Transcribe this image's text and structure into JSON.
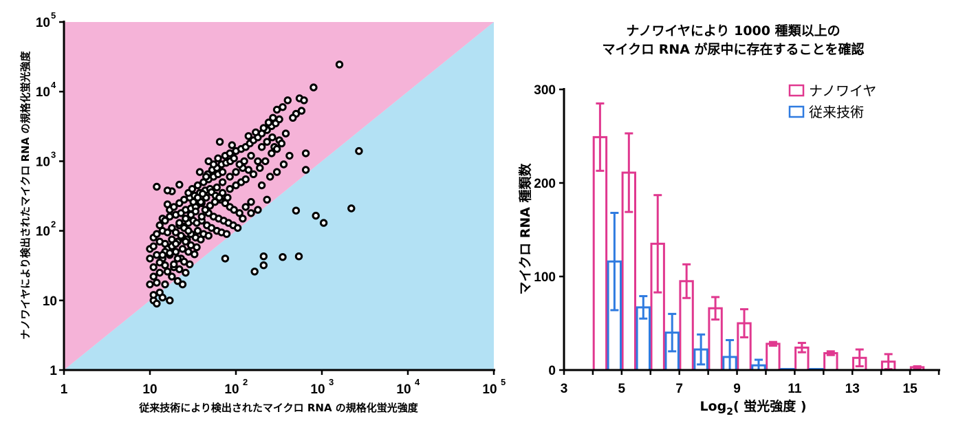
{
  "colors": {
    "pink_region": "#f5b3d8",
    "blue_region": "#b3e1f4",
    "nanowire": "#e0388f",
    "conventional": "#2f7be0",
    "axis": "#000000"
  },
  "chart_data": [
    {
      "type": "scatter",
      "title": "",
      "xlabel": "従来技術により検出されたマイクロ RNA の規格化蛍光強度",
      "ylabel": "ナノワイヤにより検出されたマイクロ RNA の規格化蛍光強度",
      "xscale": "log",
      "yscale": "log",
      "xlim": [
        1,
        100000
      ],
      "ylim": [
        1,
        100000
      ],
      "x_ticks": [
        {
          "v": 1,
          "base": "1",
          "exp": ""
        },
        {
          "v": 10,
          "base": "10",
          "exp": ""
        },
        {
          "v": 100,
          "base": "10",
          "exp": "2"
        },
        {
          "v": 1000,
          "base": "10",
          "exp": "3"
        },
        {
          "v": 10000,
          "base": "10",
          "exp": "4"
        },
        {
          "v": 100000,
          "base": "10",
          "exp": "5"
        }
      ],
      "y_ticks": [
        {
          "v": 1,
          "base": "1",
          "exp": ""
        },
        {
          "v": 10,
          "base": "10",
          "exp": ""
        },
        {
          "v": 100,
          "base": "10",
          "exp": "2"
        },
        {
          "v": 1000,
          "base": "10",
          "exp": "3"
        },
        {
          "v": 10000,
          "base": "10",
          "exp": "4"
        },
        {
          "v": 100000,
          "base": "10",
          "exp": "5"
        }
      ],
      "regions": [
        {
          "name": "nanowire-higher",
          "color": "#f5b3d8"
        },
        {
          "name": "conventional-higher",
          "color": "#b3e1f4"
        }
      ],
      "points": [
        [
          1600,
          24500
        ],
        [
          800,
          11500
        ],
        [
          2700,
          1400
        ],
        [
          2200,
          210
        ],
        [
          500,
          195
        ],
        [
          850,
          165
        ],
        [
          1050,
          130
        ],
        [
          650,
          750
        ],
        [
          650,
          1300
        ],
        [
          580,
          5300
        ],
        [
          500,
          4800
        ],
        [
          550,
          8000
        ],
        [
          620,
          7500
        ],
        [
          400,
          7500
        ],
        [
          350,
          6000
        ],
        [
          300,
          5500
        ],
        [
          460,
          4200
        ],
        [
          380,
          2500
        ],
        [
          320,
          2000
        ],
        [
          280,
          1600
        ],
        [
          420,
          1200
        ],
        [
          360,
          900
        ],
        [
          300,
          700
        ],
        [
          250,
          600
        ],
        [
          200,
          450
        ],
        [
          230,
          280
        ],
        [
          180,
          200
        ],
        [
          150,
          180
        ],
        [
          120,
          150
        ],
        [
          75,
          40
        ],
        [
          165,
          26
        ],
        [
          210,
          43
        ],
        [
          210,
          32
        ],
        [
          350,
          42
        ],
        [
          540,
          43
        ],
        [
          12,
          430
        ],
        [
          18,
          370
        ],
        [
          16,
          380
        ],
        [
          22,
          460
        ],
        [
          16,
          240
        ],
        [
          17,
          200
        ],
        [
          14,
          150
        ],
        [
          11,
          10
        ],
        [
          12,
          9
        ],
        [
          14,
          11
        ],
        [
          17,
          10
        ],
        [
          13,
          13
        ],
        [
          11,
          12
        ],
        [
          15,
          17
        ],
        [
          12,
          18
        ],
        [
          10,
          17
        ],
        [
          11,
          22
        ],
        [
          13,
          25
        ],
        [
          16,
          26
        ],
        [
          19,
          30
        ],
        [
          11,
          30
        ],
        [
          10,
          40
        ],
        [
          12,
          45
        ],
        [
          14,
          40
        ],
        [
          17,
          45
        ],
        [
          20,
          50
        ],
        [
          23,
          40
        ],
        [
          10,
          55
        ],
        [
          11,
          60
        ],
        [
          13,
          70
        ],
        [
          15,
          65
        ],
        [
          18,
          75
        ],
        [
          21,
          70
        ],
        [
          24,
          80
        ],
        [
          27,
          75
        ],
        [
          11,
          80
        ],
        [
          12,
          90
        ],
        [
          14,
          100
        ],
        [
          16,
          95
        ],
        [
          18,
          110
        ],
        [
          22,
          120
        ],
        [
          25,
          115
        ],
        [
          28,
          130
        ],
        [
          32,
          140
        ],
        [
          13,
          120
        ],
        [
          15,
          140
        ],
        [
          17,
          160
        ],
        [
          20,
          170
        ],
        [
          23,
          180
        ],
        [
          26,
          200
        ],
        [
          30,
          210
        ],
        [
          35,
          230
        ],
        [
          40,
          250
        ],
        [
          19,
          220
        ],
        [
          22,
          250
        ],
        [
          25,
          280
        ],
        [
          29,
          300
        ],
        [
          33,
          320
        ],
        [
          38,
          350
        ],
        [
          44,
          380
        ],
        [
          50,
          400
        ],
        [
          28,
          350
        ],
        [
          31,
          400
        ],
        [
          36,
          450
        ],
        [
          42,
          500
        ],
        [
          48,
          550
        ],
        [
          55,
          600
        ],
        [
          62,
          650
        ],
        [
          70,
          700
        ],
        [
          47,
          650
        ],
        [
          53,
          750
        ],
        [
          60,
          800
        ],
        [
          68,
          900
        ],
        [
          77,
          950
        ],
        [
          86,
          1000
        ],
        [
          95,
          1100
        ],
        [
          75,
          1200
        ],
        [
          85,
          1300
        ],
        [
          100,
          1400
        ],
        [
          115,
          1500
        ],
        [
          130,
          1600
        ],
        [
          145,
          1800
        ],
        [
          160,
          2000
        ],
        [
          180,
          2200
        ],
        [
          200,
          2500
        ],
        [
          230,
          2800
        ],
        [
          260,
          3200
        ],
        [
          290,
          3500
        ],
        [
          320,
          4000
        ],
        [
          65,
          1900
        ],
        [
          90,
          1700
        ],
        [
          140,
          2300
        ],
        [
          170,
          2600
        ],
        [
          210,
          3000
        ],
        [
          240,
          3600
        ],
        [
          270,
          4200
        ],
        [
          150,
          1200
        ],
        [
          180,
          1000
        ],
        [
          120,
          800
        ],
        [
          100,
          700
        ],
        [
          85,
          600
        ],
        [
          70,
          500
        ],
        [
          60,
          420
        ],
        [
          52,
          360
        ],
        [
          45,
          300
        ],
        [
          39,
          260
        ],
        [
          34,
          220
        ],
        [
          58,
          320
        ],
        [
          66,
          280
        ],
        [
          75,
          250
        ],
        [
          85,
          220
        ],
        [
          95,
          200
        ],
        [
          110,
          180
        ],
        [
          130,
          220
        ],
        [
          150,
          260
        ],
        [
          48,
          180
        ],
        [
          55,
          160
        ],
        [
          63,
          150
        ],
        [
          72,
          140
        ],
        [
          82,
          130
        ],
        [
          93,
          120
        ],
        [
          105,
          110
        ],
        [
          40,
          140
        ],
        [
          46,
          120
        ],
        [
          52,
          110
        ],
        [
          60,
          100
        ],
        [
          68,
          95
        ],
        [
          78,
          90
        ],
        [
          36,
          100
        ],
        [
          42,
          90
        ],
        [
          48,
          85
        ],
        [
          30,
          90
        ],
        [
          34,
          80
        ],
        [
          39,
          75
        ],
        [
          26,
          70
        ],
        [
          30,
          62
        ],
        [
          35,
          58
        ],
        [
          24,
          55
        ],
        [
          28,
          50
        ],
        [
          33,
          46
        ],
        [
          21,
          40
        ],
        [
          25,
          36
        ],
        [
          29,
          33
        ],
        [
          19,
          33
        ],
        [
          22,
          28
        ],
        [
          26,
          25
        ],
        [
          18,
          22
        ],
        [
          21,
          19
        ],
        [
          24,
          17
        ],
        [
          45,
          600
        ],
        [
          38,
          700
        ],
        [
          55,
          900
        ],
        [
          48,
          1000
        ],
        [
          62,
          1100
        ],
        [
          110,
          900
        ],
        [
          125,
          1000
        ],
        [
          140,
          750
        ],
        [
          160,
          650
        ],
        [
          190,
          800
        ],
        [
          220,
          1000
        ],
        [
          260,
          1300
        ],
        [
          300,
          1500
        ],
        [
          340,
          1800
        ],
        [
          200,
          1600
        ],
        [
          230,
          1900
        ],
        [
          265,
          2200
        ],
        [
          85,
          400
        ],
        [
          100,
          450
        ],
        [
          115,
          500
        ],
        [
          130,
          550
        ],
        [
          70,
          350
        ],
        [
          80,
          300
        ],
        [
          26,
          150
        ],
        [
          30,
          170
        ],
        [
          34,
          190
        ],
        [
          22,
          130
        ],
        [
          25,
          110
        ],
        [
          28,
          100
        ],
        [
          20,
          95
        ],
        [
          23,
          85
        ],
        [
          35,
          130
        ],
        [
          40,
          160
        ],
        [
          44,
          200
        ],
        [
          50,
          230
        ],
        [
          57,
          260
        ],
        [
          64,
          300
        ],
        [
          32,
          260
        ],
        [
          36,
          300
        ],
        [
          41,
          340
        ],
        [
          16,
          55
        ],
        [
          18,
          60
        ],
        [
          20,
          65
        ],
        [
          15,
          50
        ],
        [
          17,
          48
        ],
        [
          14,
          45
        ],
        [
          13,
          35
        ],
        [
          15,
          32
        ]
      ]
    },
    {
      "type": "bar",
      "title_lines": [
        "ナノワイヤにより 1000 種類以上の",
        "マイクロ RNA が尿中に存在することを確認"
      ],
      "xlabel_base": "Log",
      "xlabel_sub": "2",
      "xlabel_rest": "( 蛍光強度 )",
      "ylabel": "マイクロ RNA 種類数",
      "xlim": [
        3,
        16
      ],
      "ylim": [
        0,
        300
      ],
      "x_ticks": [
        "3",
        "5",
        "7",
        "9",
        "11",
        "13",
        "15"
      ],
      "y_ticks": [
        "0",
        "100",
        "200",
        "300"
      ],
      "legend": [
        "ナノワイヤ",
        "従来技術"
      ],
      "legend_position": "top-right",
      "series": [
        {
          "name": "ナノワイヤ",
          "color": "#e0388f",
          "x": [
            4.25,
            5.25,
            6.25,
            7.25,
            8.25,
            9.25,
            10.25,
            11.25,
            12.25,
            13.25,
            14.25,
            15.25
          ],
          "values": [
            249,
            211,
            135,
            95,
            66,
            50,
            28,
            24,
            18,
            13,
            9,
            3
          ],
          "errors": [
            36,
            42,
            52,
            18,
            12,
            15,
            2,
            5,
            2,
            9,
            8,
            1
          ]
        },
        {
          "name": "従来技術",
          "color": "#2f7be0",
          "x": [
            4.75,
            5.75,
            6.75,
            7.75,
            8.75,
            9.75,
            10.75,
            11.75
          ],
          "values": [
            116,
            67,
            40,
            22,
            14,
            5,
            1,
            1
          ],
          "errors": [
            52,
            12,
            20,
            16,
            18,
            6,
            0,
            0
          ]
        }
      ]
    }
  ]
}
